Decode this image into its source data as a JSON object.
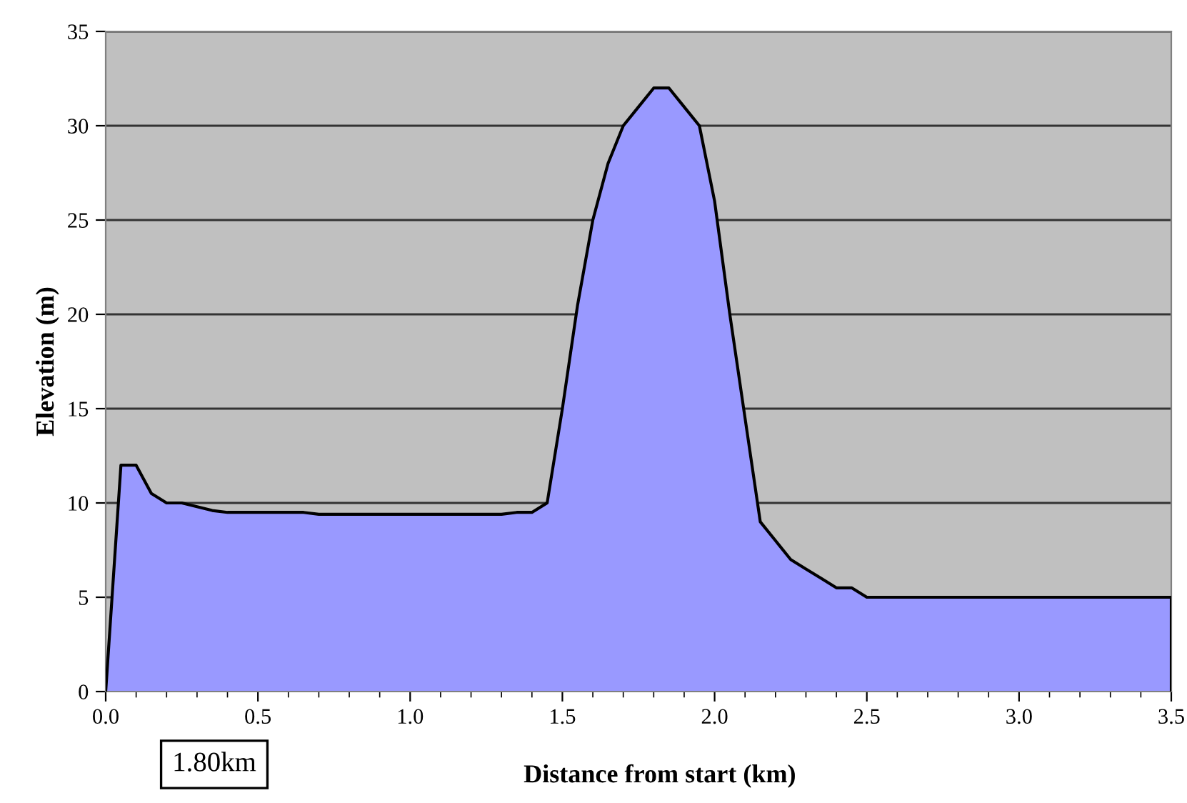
{
  "chart_data": {
    "type": "area",
    "xlabel": "Distance from start (km)",
    "ylabel": "Elevation (m)",
    "annotations": [
      "1.80km"
    ],
    "x": [
      0,
      0.05,
      0.1,
      0.15,
      0.2,
      0.25,
      0.3,
      0.35,
      0.4,
      0.65,
      0.7,
      1.3,
      1.35,
      1.4,
      1.45,
      1.5,
      1.55,
      1.6,
      1.65,
      1.7,
      1.75,
      1.8,
      1.85,
      1.9,
      1.95,
      2.0,
      2.05,
      2.1,
      2.15,
      2.2,
      2.25,
      2.3,
      2.35,
      2.4,
      2.45,
      2.5,
      3.5,
      3.5
    ],
    "series": [
      {
        "color": "#9999ff",
        "values": [
          0,
          12,
          12,
          10.5,
          10,
          10,
          9.8,
          9.6,
          9.5,
          9.5,
          9.4,
          9.4,
          9.5,
          9.5,
          10,
          15,
          20.5,
          25,
          28,
          30,
          31,
          32,
          32,
          31,
          30,
          26,
          20,
          14.5,
          9,
          8,
          7,
          6.5,
          6,
          5.5,
          5.5,
          5,
          5,
          0
        ]
      }
    ],
    "xlim": [
      0,
      3.5
    ],
    "ylim": [
      0,
      35
    ],
    "xticks": [
      {
        "value": 0,
        "label": "0.0"
      },
      {
        "value": 0.5,
        "label": "0.5"
      },
      {
        "value": 1,
        "label": "1.0"
      },
      {
        "value": 1.5,
        "label": "1.5"
      },
      {
        "value": 2,
        "label": "2.0"
      },
      {
        "value": 2.5,
        "label": "2.5"
      },
      {
        "value": 3,
        "label": "3.0"
      },
      {
        "value": 3.5,
        "label": "3.5"
      },
      {
        "value": 0.1,
        "label": null
      },
      {
        "value": 0.2,
        "label": null
      },
      {
        "value": 0.3,
        "label": null
      },
      {
        "value": 0.4,
        "label": null
      },
      {
        "value": 0.6,
        "label": null
      },
      {
        "value": 0.7,
        "label": null
      },
      {
        "value": 0.8,
        "label": null
      },
      {
        "value": 0.9,
        "label": null
      },
      {
        "value": 1.1,
        "label": null
      },
      {
        "value": 1.2,
        "label": null
      },
      {
        "value": 1.3,
        "label": null
      },
      {
        "value": 1.4,
        "label": null
      },
      {
        "value": 1.6,
        "label": null
      },
      {
        "value": 1.7,
        "label": null
      },
      {
        "value": 1.8,
        "label": null
      },
      {
        "value": 1.9,
        "label": null
      },
      {
        "value": 2.1,
        "label": null
      },
      {
        "value": 2.2,
        "label": null
      },
      {
        "value": 2.3,
        "label": null
      },
      {
        "value": 2.4,
        "label": null
      },
      {
        "value": 2.6,
        "label": null
      },
      {
        "value": 2.7,
        "label": null
      },
      {
        "value": 2.8,
        "label": null
      },
      {
        "value": 2.9,
        "label": null
      },
      {
        "value": 3.1,
        "label": null
      },
      {
        "value": 3.2,
        "label": null
      },
      {
        "value": 3.3,
        "label": null
      },
      {
        "value": 3.4,
        "label": null
      }
    ],
    "yticks": [
      0,
      5,
      10,
      15,
      20,
      25,
      30,
      35
    ],
    "grid": "y"
  }
}
